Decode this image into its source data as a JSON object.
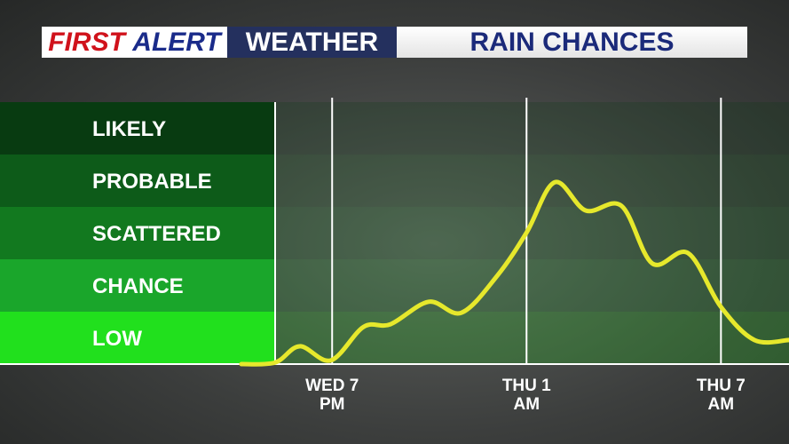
{
  "header": {
    "brand_first": "FIRST",
    "brand_alert": "ALERT",
    "section": "WEATHER",
    "title": "RAIN CHANCES"
  },
  "chart_data": {
    "type": "line",
    "x": [
      16.2,
      17.24,
      18.0,
      18.96,
      19.97,
      20.8,
      21.98,
      22.99,
      24.1,
      25.0,
      25.87,
      26.83,
      27.93,
      28.88,
      29.98,
      30.99,
      32.03,
      33.1
    ],
    "series": [
      {
        "color": "#e6e82c",
        "values": [
          0,
          0.03,
          0.34,
          0.07,
          0.71,
          0.76,
          1.19,
          0.98,
          1.69,
          2.51,
          3.47,
          2.93,
          3.02,
          1.92,
          2.12,
          1.1,
          0.46,
          0.46
        ]
      }
    ],
    "xlim": [
      16.2,
      33.1
    ],
    "xticks": [
      {
        "value": 19,
        "label": "WED 7 PM"
      },
      {
        "value": 25,
        "label": "THU 1 AM"
      },
      {
        "value": 31,
        "label": "THU 7 AM"
      }
    ],
    "ylim": [
      0,
      5
    ],
    "yticks": [
      {
        "value": 0.5,
        "label": "LOW"
      },
      {
        "value": 1.5,
        "label": "CHANCE"
      },
      {
        "value": 2.5,
        "label": "SCATTERED"
      },
      {
        "value": 3.5,
        "label": "PROBABLE"
      },
      {
        "value": 4.5,
        "label": "LIKELY"
      }
    ],
    "band_colors": [
      "#21e01d",
      "#1aa62b",
      "#12791f",
      "#0d5b19",
      "#083b11"
    ]
  }
}
